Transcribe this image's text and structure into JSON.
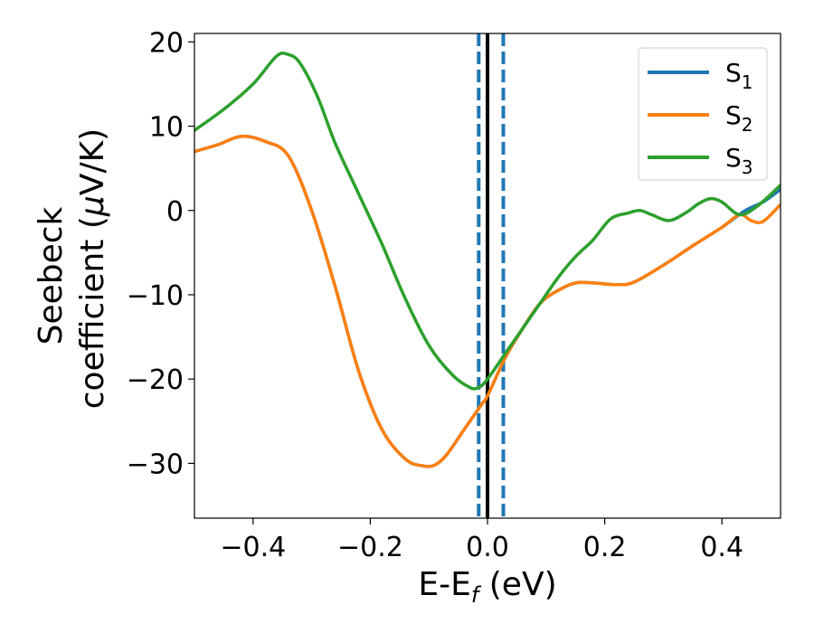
{
  "chart_data": {
    "type": "line",
    "xlabel": "E-E_f (eV)",
    "xlabel_main": "E-E",
    "xlabel_sub": "f",
    "xlabel_unit": " (eV)",
    "ylabel_line1": "Seebeck",
    "ylabel_line2_pre": "coefficient  (",
    "ylabel_line2_mu": "μ",
    "ylabel_line2_post": "V/K)",
    "xlim": [
      -0.5,
      0.5
    ],
    "ylim": [
      -36.5,
      21
    ],
    "xticks": [
      -0.4,
      -0.2,
      0.0,
      0.2,
      0.4
    ],
    "xtick_labels": [
      "−0.4",
      "−0.2",
      "0.0",
      "0.2",
      "0.4"
    ],
    "yticks": [
      20,
      10,
      0,
      -10,
      -20,
      -30
    ],
    "ytick_labels": [
      "20",
      "10",
      "0",
      "−10",
      "−20",
      "−30"
    ],
    "legend_position": "top-right",
    "series": [
      {
        "name": "S1",
        "label_main": "S",
        "label_sub": "1",
        "color": "#1f77b4",
        "x": [
          -0.5,
          -0.46,
          -0.42,
          -0.38,
          -0.34,
          -0.3,
          -0.26,
          -0.22,
          -0.18,
          -0.14,
          -0.11,
          -0.09,
          -0.07,
          -0.04,
          -0.01,
          0.0,
          0.03,
          0.06,
          0.09,
          0.12,
          0.15,
          0.18,
          0.22,
          0.25,
          0.3,
          0.35,
          0.4,
          0.44,
          0.47,
          0.5
        ],
        "y": [
          7,
          7.8,
          8.8,
          8.2,
          6.5,
          0,
          -9,
          -19,
          -26,
          -29.5,
          -30.3,
          -30.2,
          -29,
          -26,
          -23,
          -22,
          -17.5,
          -14,
          -11,
          -9.5,
          -8.6,
          -8.6,
          -8.8,
          -8.5,
          -6.5,
          -4.2,
          -2,
          0,
          1,
          2.5
        ]
      },
      {
        "name": "S2",
        "label_main": "S",
        "label_sub": "2",
        "color": "#ff7f0e",
        "x": [
          -0.5,
          -0.46,
          -0.42,
          -0.38,
          -0.34,
          -0.3,
          -0.26,
          -0.22,
          -0.18,
          -0.14,
          -0.11,
          -0.09,
          -0.07,
          -0.04,
          -0.01,
          0.0,
          0.03,
          0.06,
          0.09,
          0.12,
          0.15,
          0.18,
          0.22,
          0.25,
          0.3,
          0.35,
          0.4,
          0.43,
          0.45,
          0.47,
          0.5
        ],
        "y": [
          7,
          7.8,
          8.8,
          8.2,
          6.5,
          0,
          -9,
          -19,
          -26,
          -29.5,
          -30.3,
          -30.2,
          -29,
          -26,
          -23,
          -22,
          -17.5,
          -14,
          -11,
          -9.5,
          -8.6,
          -8.6,
          -8.8,
          -8.5,
          -6.5,
          -4.2,
          -2,
          -0.5,
          -1.2,
          -1.3,
          0.7
        ]
      },
      {
        "name": "S3",
        "label_main": "S",
        "label_sub": "3",
        "color": "#2ca02c",
        "x": [
          -0.5,
          -0.45,
          -0.4,
          -0.36,
          -0.34,
          -0.32,
          -0.29,
          -0.26,
          -0.22,
          -0.18,
          -0.14,
          -0.1,
          -0.06,
          -0.03,
          -0.015,
          0.0,
          0.03,
          0.06,
          0.09,
          0.12,
          0.15,
          0.18,
          0.21,
          0.24,
          0.26,
          0.28,
          0.31,
          0.34,
          0.36,
          0.38,
          0.4,
          0.43,
          0.46,
          0.5
        ],
        "y": [
          9.5,
          12,
          15,
          18.3,
          18.5,
          17.5,
          13.5,
          8,
          2,
          -4,
          -10.5,
          -16,
          -19.5,
          -21,
          -21,
          -20,
          -17,
          -14,
          -11,
          -8,
          -5.5,
          -3.5,
          -1,
          -0.3,
          0,
          -0.5,
          -1.2,
          -0.2,
          0.8,
          1.4,
          1,
          -0.5,
          0.5,
          3
        ]
      }
    ],
    "vlines": [
      {
        "x": 0.0,
        "color": "#000000",
        "style": "solid"
      },
      {
        "x": -0.015,
        "color": "#1f77b4",
        "style": "dashed"
      },
      {
        "x": 0.027,
        "color": "#1f77b4",
        "style": "dashed"
      }
    ]
  }
}
